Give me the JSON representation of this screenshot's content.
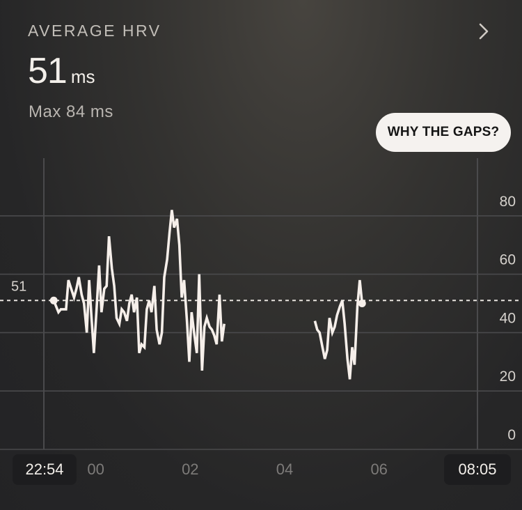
{
  "header": {
    "title": "AVERAGE HRV",
    "value": "51",
    "unit": "ms",
    "max_label": "Max 84 ms"
  },
  "gaps_button": {
    "label": "WHY THE GAPS?"
  },
  "icons": {
    "details": "chevron-right-icon"
  },
  "colors": {
    "line": "#f6efea",
    "grid": "#4a4a4c",
    "axis_text": "#d6d2cd",
    "tick_time": "#7d7b79",
    "background": "#242426"
  },
  "time_axis": {
    "start_label": "22:54",
    "end_label": "08:05"
  },
  "chart_data": {
    "type": "line",
    "title": "AVERAGE HRV",
    "ylim": [
      0,
      100
    ],
    "y_ticks": [
      "0",
      "20",
      "40",
      "60",
      "80"
    ],
    "x_ticks": [
      {
        "label": "00",
        "hour": 1.1
      },
      {
        "label": "02",
        "hour": 3.1
      },
      {
        "label": "04",
        "hour": 5.1
      },
      {
        "label": "06",
        "hour": 7.1
      }
    ],
    "x_range_hours": [
      0,
      9.183
    ],
    "average": {
      "value": 51,
      "label": "51"
    },
    "series": [
      {
        "values": [
          [
            0.21,
            51
          ],
          [
            0.26,
            49
          ],
          [
            0.31,
            47
          ],
          [
            0.36,
            48
          ],
          [
            0.41,
            48
          ],
          [
            0.47,
            48
          ],
          [
            0.52,
            58
          ],
          [
            0.58,
            55
          ],
          [
            0.64,
            52
          ],
          [
            0.69,
            55
          ],
          [
            0.74,
            59
          ],
          [
            0.8,
            53
          ],
          [
            0.85,
            50
          ],
          [
            0.91,
            40
          ],
          [
            0.96,
            58
          ],
          [
            1.01,
            45
          ],
          [
            1.06,
            33
          ],
          [
            1.12,
            49
          ],
          [
            1.17,
            63
          ],
          [
            1.22,
            47
          ],
          [
            1.28,
            55
          ],
          [
            1.33,
            56
          ],
          [
            1.38,
            73
          ],
          [
            1.44,
            62
          ],
          [
            1.49,
            56
          ],
          [
            1.54,
            45
          ],
          [
            1.6,
            43
          ],
          [
            1.65,
            48
          ],
          [
            1.7,
            47
          ],
          [
            1.76,
            44
          ],
          [
            1.81,
            50
          ],
          [
            1.86,
            53
          ],
          [
            1.91,
            47
          ],
          [
            1.97,
            52
          ],
          [
            2.02,
            33
          ],
          [
            2.07,
            36
          ],
          [
            2.13,
            35
          ],
          [
            2.18,
            48
          ],
          [
            2.23,
            51
          ],
          [
            2.28,
            47
          ],
          [
            2.34,
            56
          ],
          [
            2.39,
            41
          ],
          [
            2.45,
            36
          ],
          [
            2.5,
            40
          ],
          [
            2.55,
            59
          ],
          [
            2.61,
            65
          ],
          [
            2.66,
            74
          ],
          [
            2.71,
            82
          ],
          [
            2.76,
            76
          ],
          [
            2.82,
            79
          ],
          [
            2.87,
            70
          ],
          [
            2.92,
            52
          ],
          [
            2.97,
            58
          ],
          [
            3.03,
            44
          ],
          [
            3.08,
            30
          ],
          [
            3.13,
            47
          ],
          [
            3.19,
            39
          ],
          [
            3.24,
            33
          ],
          [
            3.29,
            60
          ],
          [
            3.35,
            27
          ],
          [
            3.4,
            42
          ],
          [
            3.45,
            45
          ],
          [
            3.51,
            42
          ],
          [
            3.56,
            41
          ],
          [
            3.61,
            39
          ],
          [
            3.66,
            36
          ],
          [
            3.72,
            53
          ],
          [
            3.77,
            37
          ],
          [
            3.82,
            43
          ],
          null,
          [
            5.74,
            44
          ],
          [
            5.79,
            41
          ],
          [
            5.84,
            40
          ],
          [
            5.9,
            35
          ],
          [
            5.95,
            31
          ],
          [
            6.0,
            34
          ],
          [
            6.05,
            45
          ],
          [
            6.11,
            40
          ],
          [
            6.16,
            42
          ],
          [
            6.21,
            46
          ],
          [
            6.27,
            49
          ],
          [
            6.32,
            51
          ],
          [
            6.37,
            43
          ],
          [
            6.43,
            31
          ],
          [
            6.48,
            24
          ],
          [
            6.53,
            35
          ],
          [
            6.58,
            29
          ],
          [
            6.64,
            49
          ],
          [
            6.69,
            58
          ],
          [
            6.74,
            50
          ]
        ]
      }
    ]
  }
}
